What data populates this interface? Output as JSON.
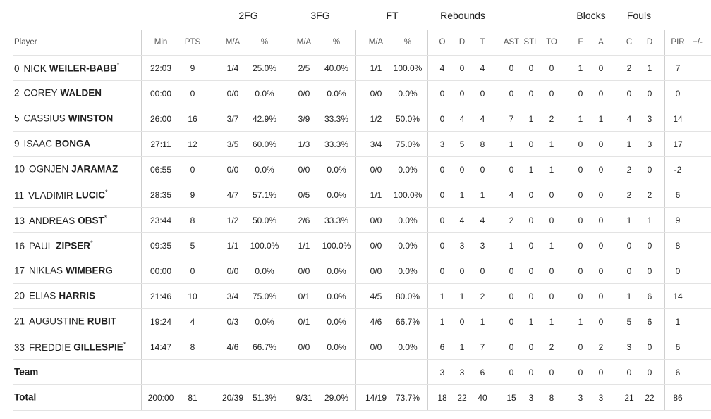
{
  "groups": [
    "2FG",
    "3FG",
    "FT",
    "Rebounds",
    "Blocks",
    "Fouls"
  ],
  "columns": [
    "Player",
    "Min",
    "PTS",
    "M/A",
    "%",
    "M/A",
    "%",
    "M/A",
    "%",
    "O",
    "D",
    "T",
    "AST",
    "STL",
    "TO",
    "F",
    "A",
    "C",
    "D",
    "PIR",
    "+/-"
  ],
  "rows": [
    {
      "number": "0",
      "first": "NICK",
      "last": "WEILER-BABB",
      "mark": "*",
      "cells": [
        "22:03",
        "9",
        "1/4",
        "25.0%",
        "2/5",
        "40.0%",
        "1/1",
        "100.0%",
        "4",
        "0",
        "4",
        "0",
        "0",
        "0",
        "1",
        "0",
        "2",
        "1",
        "7"
      ]
    },
    {
      "number": "2",
      "first": "COREY",
      "last": "WALDEN",
      "cells": [
        "00:00",
        "0",
        "0/0",
        "0.0%",
        "0/0",
        "0.0%",
        "0/0",
        "0.0%",
        "0",
        "0",
        "0",
        "0",
        "0",
        "0",
        "0",
        "0",
        "0",
        "0",
        "0"
      ]
    },
    {
      "number": "5",
      "first": "CASSIUS",
      "last": "WINSTON",
      "cells": [
        "26:00",
        "16",
        "3/7",
        "42.9%",
        "3/9",
        "33.3%",
        "1/2",
        "50.0%",
        "0",
        "4",
        "4",
        "7",
        "1",
        "2",
        "1",
        "1",
        "4",
        "3",
        "14"
      ]
    },
    {
      "number": "9",
      "first": "ISAAC",
      "last": "BONGA",
      "cells": [
        "27:11",
        "12",
        "3/5",
        "60.0%",
        "1/3",
        "33.3%",
        "3/4",
        "75.0%",
        "3",
        "5",
        "8",
        "1",
        "0",
        "1",
        "0",
        "0",
        "1",
        "3",
        "17"
      ]
    },
    {
      "number": "10",
      "first": "OGNJEN",
      "last": "JARAMAZ",
      "cells": [
        "06:55",
        "0",
        "0/0",
        "0.0%",
        "0/0",
        "0.0%",
        "0/0",
        "0.0%",
        "0",
        "0",
        "0",
        "0",
        "1",
        "1",
        "0",
        "0",
        "2",
        "0",
        "-2"
      ]
    },
    {
      "number": "11",
      "first": "VLADIMIR",
      "last": "LUCIC",
      "mark": "*",
      "cells": [
        "28:35",
        "9",
        "4/7",
        "57.1%",
        "0/5",
        "0.0%",
        "1/1",
        "100.0%",
        "0",
        "1",
        "1",
        "4",
        "0",
        "0",
        "0",
        "0",
        "2",
        "2",
        "6"
      ]
    },
    {
      "number": "13",
      "first": "ANDREAS",
      "last": "OBST",
      "mark": "*",
      "cells": [
        "23:44",
        "8",
        "1/2",
        "50.0%",
        "2/6",
        "33.3%",
        "0/0",
        "0.0%",
        "0",
        "4",
        "4",
        "2",
        "0",
        "0",
        "0",
        "0",
        "1",
        "1",
        "9"
      ]
    },
    {
      "number": "16",
      "first": "PAUL",
      "last": "ZIPSER",
      "mark": "*",
      "cells": [
        "09:35",
        "5",
        "1/1",
        "100.0%",
        "1/1",
        "100.0%",
        "0/0",
        "0.0%",
        "0",
        "3",
        "3",
        "1",
        "0",
        "1",
        "0",
        "0",
        "0",
        "0",
        "8"
      ]
    },
    {
      "number": "17",
      "first": "NIKLAS",
      "last": "WIMBERG",
      "cells": [
        "00:00",
        "0",
        "0/0",
        "0.0%",
        "0/0",
        "0.0%",
        "0/0",
        "0.0%",
        "0",
        "0",
        "0",
        "0",
        "0",
        "0",
        "0",
        "0",
        "0",
        "0",
        "0"
      ]
    },
    {
      "number": "20",
      "first": "ELIAS",
      "last": "HARRIS",
      "cells": [
        "21:46",
        "10",
        "3/4",
        "75.0%",
        "0/1",
        "0.0%",
        "4/5",
        "80.0%",
        "1",
        "1",
        "2",
        "0",
        "0",
        "0",
        "0",
        "0",
        "1",
        "6",
        "14"
      ]
    },
    {
      "number": "21",
      "first": "AUGUSTINE",
      "last": "RUBIT",
      "cells": [
        "19:24",
        "4",
        "0/3",
        "0.0%",
        "0/1",
        "0.0%",
        "4/6",
        "66.7%",
        "1",
        "0",
        "1",
        "0",
        "1",
        "1",
        "1",
        "0",
        "5",
        "6",
        "1"
      ]
    },
    {
      "number": "33",
      "first": "FREDDIE",
      "last": "GILLESPIE",
      "mark": "*",
      "cells": [
        "14:47",
        "8",
        "4/6",
        "66.7%",
        "0/0",
        "0.0%",
        "0/0",
        "0.0%",
        "6",
        "1",
        "7",
        "0",
        "0",
        "2",
        "0",
        "2",
        "3",
        "0",
        "6"
      ]
    },
    {
      "label": "Team",
      "cells": [
        null,
        null,
        null,
        null,
        null,
        null,
        null,
        null,
        "3",
        "3",
        "6",
        "0",
        "0",
        "0",
        "0",
        "0",
        "0",
        "0",
        "6"
      ]
    },
    {
      "label": "Total",
      "cells": [
        "200:00",
        "81",
        "20/39",
        "51.3%",
        "9/31",
        "29.0%",
        "14/19",
        "73.7%",
        "18",
        "22",
        "40",
        "15",
        "3",
        "8",
        "3",
        "3",
        "21",
        "22",
        "86"
      ]
    }
  ]
}
